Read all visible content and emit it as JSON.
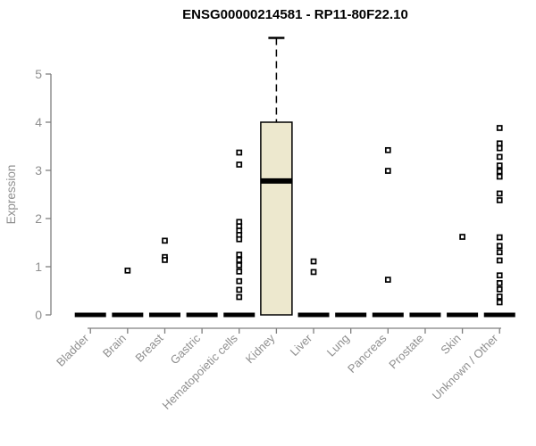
{
  "chart_data": {
    "type": "boxplot",
    "title": "ENSG00000214581 - RP11-80F22.10",
    "ylabel": "Expression",
    "xlabel": "",
    "ylim": [
      0,
      5
    ],
    "yticks": [
      0,
      1,
      2,
      3,
      4,
      5
    ],
    "grid": false,
    "legend": "none",
    "categories": [
      "Bladder",
      "Brain",
      "Breast",
      "Gastric",
      "Hematopoietic cells",
      "Kidney",
      "Liver",
      "Lung",
      "Pancreas",
      "Prostate",
      "Skin",
      "Unknown / Other"
    ],
    "boxes": [
      {
        "category": "Bladder",
        "q1": 0,
        "median": 0,
        "q3": 0,
        "whisker_low": 0,
        "whisker_high": 0,
        "outliers": []
      },
      {
        "category": "Brain",
        "q1": 0,
        "median": 0,
        "q3": 0,
        "whisker_low": 0,
        "whisker_high": 0,
        "outliers": [
          0.92
        ]
      },
      {
        "category": "Breast",
        "q1": 0,
        "median": 0,
        "q3": 0,
        "whisker_low": 0,
        "whisker_high": 0,
        "outliers": [
          1.54,
          1.2,
          1.14
        ]
      },
      {
        "category": "Gastric",
        "q1": 0,
        "median": 0,
        "q3": 0,
        "whisker_low": 0,
        "whisker_high": 0,
        "outliers": []
      },
      {
        "category": "Hematopoietic cells",
        "q1": 0,
        "median": 0,
        "q3": 0,
        "whisker_low": 0,
        "whisker_high": 0,
        "outliers": [
          3.37,
          3.12,
          1.93,
          1.84,
          1.75,
          1.66,
          1.57,
          1.25,
          1.14,
          1.03,
          0.9,
          0.7,
          0.52,
          0.37
        ]
      },
      {
        "category": "Kidney",
        "q1": 0,
        "median": 2.78,
        "q3": 4.0,
        "whisker_low": 0,
        "whisker_high": 5.75,
        "outliers": []
      },
      {
        "category": "Liver",
        "q1": 0,
        "median": 0,
        "q3": 0,
        "whisker_low": 0,
        "whisker_high": 0,
        "outliers": [
          1.11,
          0.89
        ]
      },
      {
        "category": "Lung",
        "q1": 0,
        "median": 0,
        "q3": 0,
        "whisker_low": 0,
        "whisker_high": 0,
        "outliers": []
      },
      {
        "category": "Pancreas",
        "q1": 0,
        "median": 0,
        "q3": 0,
        "whisker_low": 0,
        "whisker_high": 0,
        "outliers": [
          3.42,
          2.99,
          0.73
        ]
      },
      {
        "category": "Prostate",
        "q1": 0,
        "median": 0,
        "q3": 0,
        "whisker_low": 0,
        "whisker_high": 0,
        "outliers": []
      },
      {
        "category": "Skin",
        "q1": 0,
        "median": 0,
        "q3": 0,
        "whisker_low": 0,
        "whisker_high": 0,
        "outliers": [
          1.62
        ]
      },
      {
        "category": "Unknown / Other",
        "q1": 0,
        "median": 0,
        "q3": 0,
        "whisker_low": 0,
        "whisker_high": 0,
        "outliers": [
          3.88,
          3.56,
          3.46,
          3.28,
          3.1,
          2.98,
          2.87,
          2.52,
          2.38,
          1.61,
          1.43,
          1.3,
          1.13,
          0.82,
          0.66,
          0.53,
          0.38,
          0.26
        ]
      }
    ],
    "colors": {
      "box_fill": "#EDE8CE",
      "box_border": "#000000",
      "median": "#000000",
      "whisker": "#000000",
      "outlier": "#000000",
      "axis_line": "#7f7f7f",
      "axis_text": "#8f8f8f",
      "title": "#000000",
      "background": "#ffffff"
    }
  }
}
